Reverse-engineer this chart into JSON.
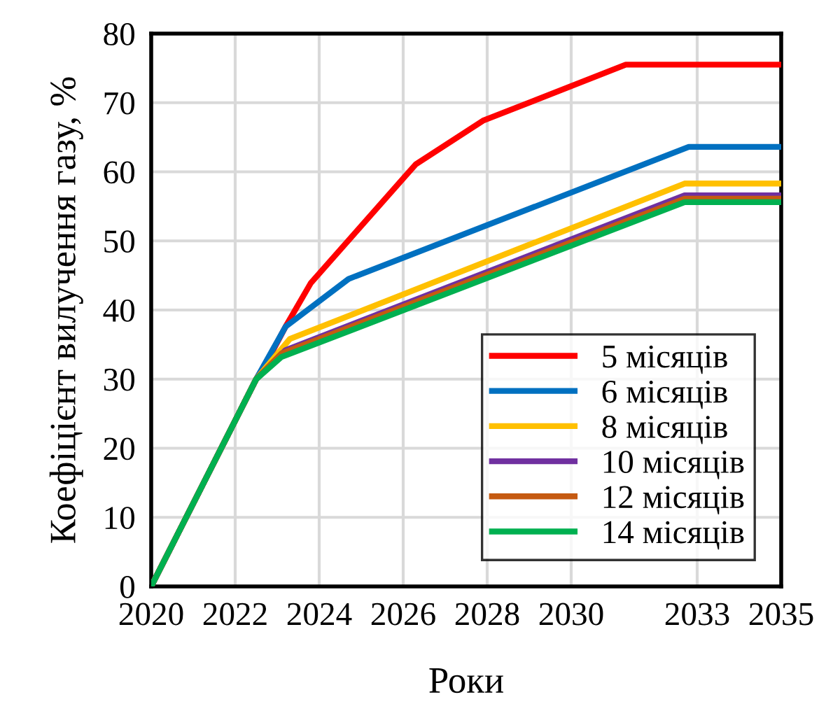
{
  "chart_data": {
    "type": "line",
    "xlabel": "Роки",
    "ylabel": "Коефіцієнт вилучення газу, %",
    "xlim": [
      2020,
      2035
    ],
    "xticks": [
      2020,
      2022,
      2024,
      2026,
      2028,
      2030,
      2033,
      2035
    ],
    "ylim": [
      0,
      80
    ],
    "yticks": [
      0,
      10,
      20,
      30,
      40,
      50,
      60,
      70,
      80
    ],
    "grid": true,
    "legend": "bottom right",
    "marker": "none",
    "line_style": "solid",
    "series": [
      {
        "name": "5 місяців",
        "color": "#ff0000",
        "x": [
          2020,
          2022.5,
          2022.8,
          2023.2,
          2023.8,
          2026.3,
          2027.9,
          2031.3,
          2035
        ],
        "values": [
          0,
          30,
          33,
          37.6,
          43.9,
          61.1,
          67.4,
          75.5,
          75.5
        ]
      },
      {
        "name": "6 місяців",
        "color": "#0070c0",
        "x": [
          2020,
          2022.5,
          2023.2,
          2024.7,
          2032.8,
          2035
        ],
        "values": [
          0,
          30,
          37.6,
          44.5,
          63.6,
          63.6
        ]
      },
      {
        "name": "8 місяців",
        "color": "#ffc000",
        "x": [
          2020,
          2022.5,
          2023.3,
          2032.7,
          2035
        ],
        "values": [
          0,
          30,
          35.8,
          58.3,
          58.3
        ]
      },
      {
        "name": "10 місяців",
        "color": "#7030a0",
        "x": [
          2020,
          2022.5,
          2023.2,
          2032.7,
          2035
        ],
        "values": [
          0,
          30,
          34.2,
          56.6,
          56.6
        ]
      },
      {
        "name": "12 місяців",
        "color": "#c55a11",
        "x": [
          2020,
          2022.5,
          2023.1,
          2032.7,
          2035
        ],
        "values": [
          0,
          30,
          33.7,
          56.1,
          56.1
        ]
      },
      {
        "name": "14 місяців",
        "color": "#00b050",
        "x": [
          2020,
          2022.5,
          2023.1,
          2032.7,
          2035
        ],
        "values": [
          0,
          30,
          33.2,
          55.6,
          55.6
        ]
      }
    ]
  }
}
